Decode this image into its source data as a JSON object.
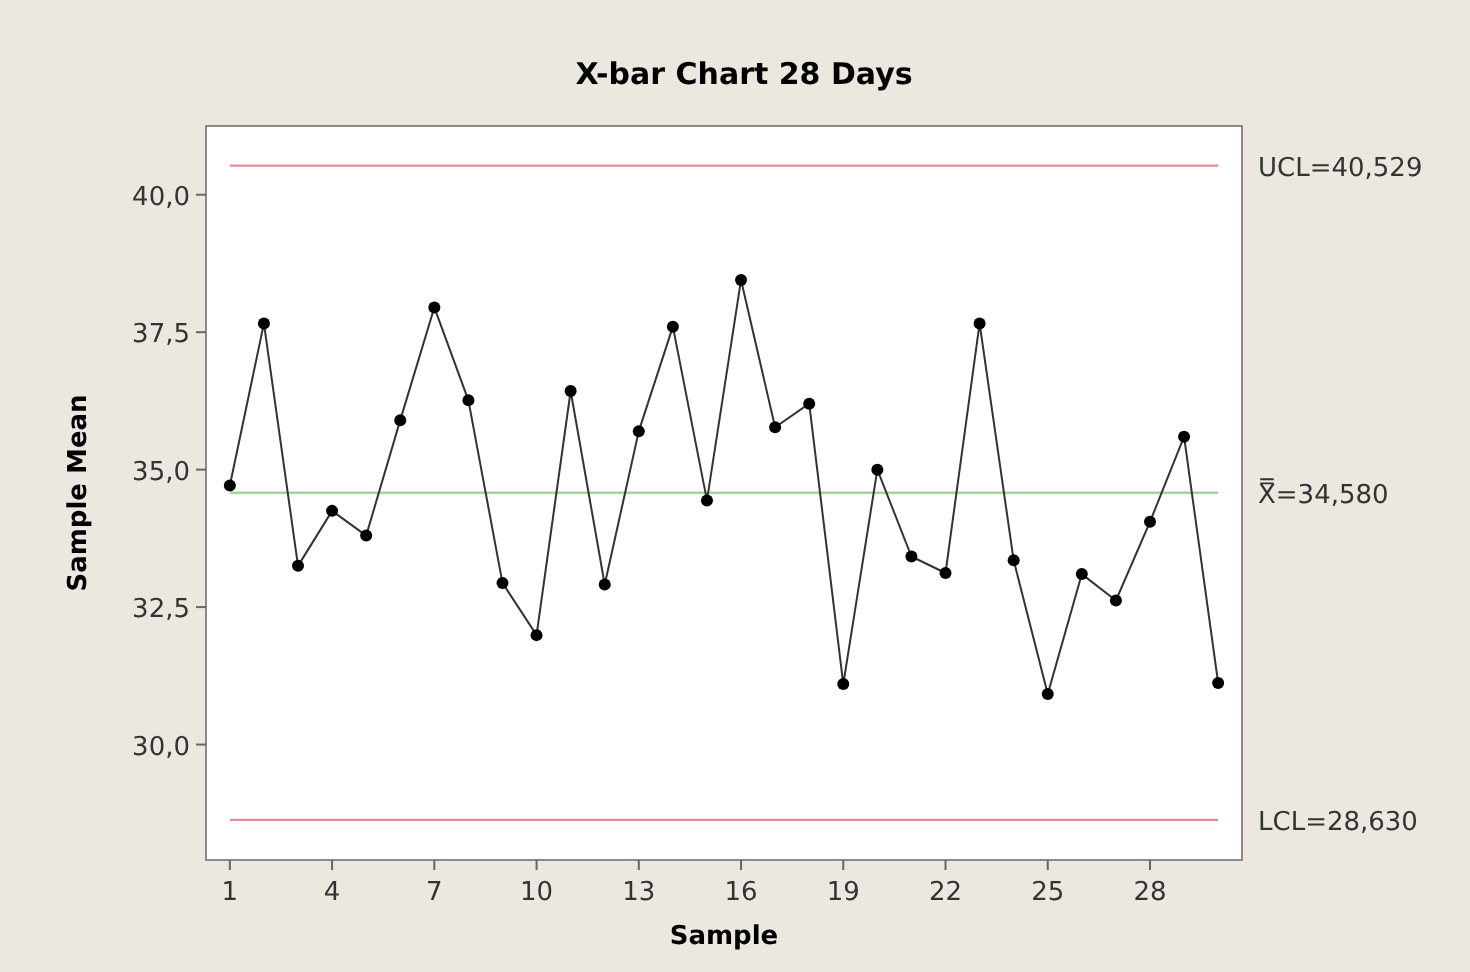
{
  "chart_data": {
    "type": "line",
    "title": "X-bar Chart 28 Days",
    "xlabel": "Sample",
    "ylabel": "Sample Mean",
    "x": [
      1,
      2,
      3,
      4,
      5,
      6,
      7,
      8,
      9,
      10,
      11,
      12,
      13,
      14,
      15,
      16,
      17,
      18,
      19,
      20,
      21,
      22,
      23,
      24,
      25,
      26,
      27,
      28,
      29,
      30
    ],
    "series": [
      {
        "color": "#333333",
        "values": [
          34.71,
          37.66,
          33.25,
          34.25,
          33.8,
          35.9,
          37.95,
          36.26,
          32.94,
          31.99,
          36.43,
          32.91,
          35.7,
          37.6,
          34.44,
          38.45,
          35.77,
          36.2,
          31.1,
          35.0,
          33.42,
          33.12,
          37.66,
          33.35,
          30.92,
          33.1,
          32.62,
          34.05,
          35.6,
          31.12
        ]
      }
    ],
    "marker": "circle",
    "line_style": "solid",
    "xlim": [
      0.3,
      30.7
    ],
    "xticks": [
      1,
      4,
      7,
      10,
      13,
      16,
      19,
      22,
      25,
      28
    ],
    "ylim": [
      27.9,
      41.25
    ],
    "yticks": [
      {
        "value": 30,
        "label": "30,0"
      },
      {
        "value": 32.5,
        "label": "32,5"
      },
      {
        "value": 35,
        "label": "35,0"
      },
      {
        "value": 37.5,
        "label": "37,5"
      },
      {
        "value": 40,
        "label": "40,0"
      }
    ],
    "ref_lines": [
      {
        "axis": "y",
        "value": 40.529,
        "label": "UCL=40,529",
        "color": "#e88a9a",
        "line_style": "solid"
      },
      {
        "axis": "y",
        "value": 34.58,
        "label": "X̿=34,580",
        "color": "#9fd89a",
        "line_style": "solid"
      },
      {
        "axis": "y",
        "value": 28.63,
        "label": "LCL=28,630",
        "color": "#e88a9a",
        "line_style": "solid"
      }
    ]
  }
}
